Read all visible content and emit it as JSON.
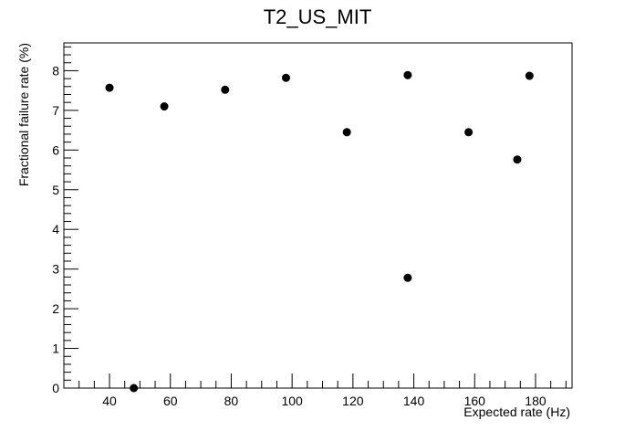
{
  "chart_data": {
    "type": "scatter",
    "title": "T2_US_MIT",
    "xlabel": "Expected rate (Hz)",
    "ylabel": "Fractional failure rate (%)",
    "xlim": [
      25,
      192
    ],
    "ylim": [
      0,
      8.7
    ],
    "x_ticks": [
      40,
      60,
      80,
      100,
      120,
      140,
      160,
      180
    ],
    "y_ticks": [
      0,
      1,
      2,
      3,
      4,
      5,
      6,
      7,
      8
    ],
    "grid": false,
    "legend": "none",
    "marker_color": "#000000",
    "points": [
      {
        "x": 40,
        "y": 7.57
      },
      {
        "x": 48,
        "y": 0.0
      },
      {
        "x": 58,
        "y": 7.1
      },
      {
        "x": 78,
        "y": 7.52
      },
      {
        "x": 98,
        "y": 7.82
      },
      {
        "x": 118,
        "y": 6.45
      },
      {
        "x": 138,
        "y": 7.89
      },
      {
        "x": 138,
        "y": 2.78
      },
      {
        "x": 158,
        "y": 6.45
      },
      {
        "x": 174,
        "y": 5.76
      },
      {
        "x": 178,
        "y": 7.87
      }
    ]
  }
}
